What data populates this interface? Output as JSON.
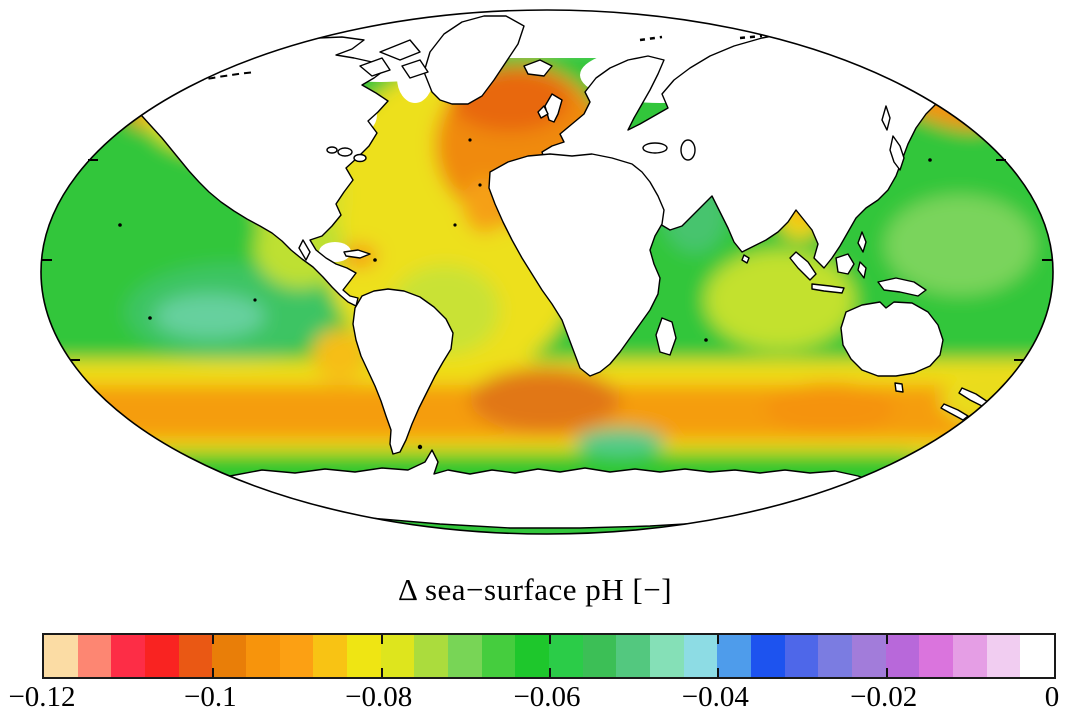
{
  "figure": {
    "background": "#FFFFFF"
  },
  "map": {
    "description": "Mollweide-projection world map of sea-surface pH change",
    "land_fill": "#FFFFFF",
    "coastline_color": "#000000",
    "no_data_color": "#FFFFFF",
    "outline_color": "#000000"
  },
  "colorbar": {
    "label": "Δ sea−surface pH [−]",
    "min": -0.12,
    "max": 0,
    "segment_step": 0.004,
    "tick_values": [
      -0.12,
      -0.1,
      -0.08,
      -0.06,
      -0.04,
      -0.02,
      0
    ],
    "tick_labels": [
      "−0.12",
      "−0.1",
      "−0.08",
      "−0.06",
      "−0.04",
      "−0.02",
      "0"
    ],
    "segment_colors": [
      "#FBDCA4",
      "#FD8672",
      "#FD2D46",
      "#F92321",
      "#EA5814",
      "#E97E08",
      "#F7940C",
      "#FCA013",
      "#F8C314",
      "#EFE513",
      "#DEE51D",
      "#ABDC3D",
      "#78D556",
      "#45CD3E",
      "#1EC72C",
      "#2BCC48",
      "#3CBF56",
      "#53C87F",
      "#85E0B7",
      "#8DDCE4",
      "#4E9CEB",
      "#1D53EF",
      "#4E67E9",
      "#7B7CE1",
      "#A27CDA",
      "#B868DA",
      "#DA74DD",
      "#E59EE5",
      "#F1CDF1",
      "#FFFFFF"
    ]
  },
  "chart_data": {
    "type": "heatmap",
    "title": "Δ sea−surface pH [−]",
    "units": "pH units (dimensionless)",
    "colorbar_range": [
      -0.12,
      0
    ],
    "colorbar_tick_labels": [
      "−0.12",
      "−0.1",
      "−0.08",
      "−0.06",
      "−0.04",
      "−0.02",
      "0"
    ],
    "legend_position": "bottom",
    "regions": [
      {
        "name": "open_ocean_base_green",
        "value": -0.058,
        "color": "#30C63B"
      },
      {
        "name": "atlantic_yellow",
        "value": -0.078,
        "color": "#EDE01C"
      },
      {
        "name": "southern_ocean_yellow_band",
        "value": -0.079,
        "color": "#EFDE18"
      },
      {
        "name": "southern_ocean_orange_band",
        "value": -0.086,
        "color": "#F59D10"
      },
      {
        "name": "north_atlantic_subpolar_orange",
        "value": -0.09,
        "color": "#F08A0C"
      },
      {
        "name": "north_atlantic_core_dark_orange",
        "value": -0.096,
        "color": "#E8680F"
      },
      {
        "name": "south_atlantic_dark_orange",
        "value": -0.094,
        "color": "#E17713"
      },
      {
        "name": "south_indian_orange",
        "value": -0.088,
        "color": "#F5930E"
      },
      {
        "name": "east_equatorial_pacific_green",
        "value": -0.053,
        "color": "#3EC463"
      },
      {
        "name": "east_equatorial_pacific_teal_core",
        "value": -0.047,
        "color": "#66D09E"
      },
      {
        "name": "arabian_sea_green",
        "value": -0.054,
        "color": "#46C46E"
      },
      {
        "name": "bay_of_bengal_yellow",
        "value": -0.08,
        "color": "#F2D516"
      },
      {
        "name": "bay_of_bengal_orange_core",
        "value": -0.087,
        "color": "#F7A311"
      },
      {
        "name": "bering_sea_orange",
        "value": -0.087,
        "color": "#F5930E"
      },
      {
        "name": "northwest_pacific_orange",
        "value": -0.087,
        "color": "#F59911"
      },
      {
        "name": "gulf_of_alaska_yellow",
        "value": -0.08,
        "color": "#EFE01A"
      },
      {
        "name": "california_current_yellow_green",
        "value": -0.073,
        "color": "#D5E02A"
      },
      {
        "name": "caribbean_orange",
        "value": -0.084,
        "color": "#F5A012"
      },
      {
        "name": "canary_current_orange",
        "value": -0.084,
        "color": "#F5A012"
      },
      {
        "name": "equatorial_atlantic_yellow_green",
        "value": -0.072,
        "color": "#C9E234"
      },
      {
        "name": "peru_chile_coast_amber",
        "value": -0.077,
        "color": "#F6BE16"
      },
      {
        "name": "central_american_pacific_yellow_green",
        "value": -0.07,
        "color": "#BEE033"
      },
      {
        "name": "tropical_indian_yellow_green",
        "value": -0.071,
        "color": "#C3E12F"
      },
      {
        "name": "antarctic_coastal_green",
        "value": -0.06,
        "color": "#2FC72F"
      },
      {
        "name": "antarctic_coastal_teal_patch",
        "value": -0.055,
        "color": "#55CB8C"
      },
      {
        "name": "west_pacific_light_green",
        "value": -0.062,
        "color": "#7AD45C"
      },
      {
        "name": "new_zealand_region_yellow",
        "value": -0.078,
        "color": "#E9DC1C"
      }
    ]
  }
}
